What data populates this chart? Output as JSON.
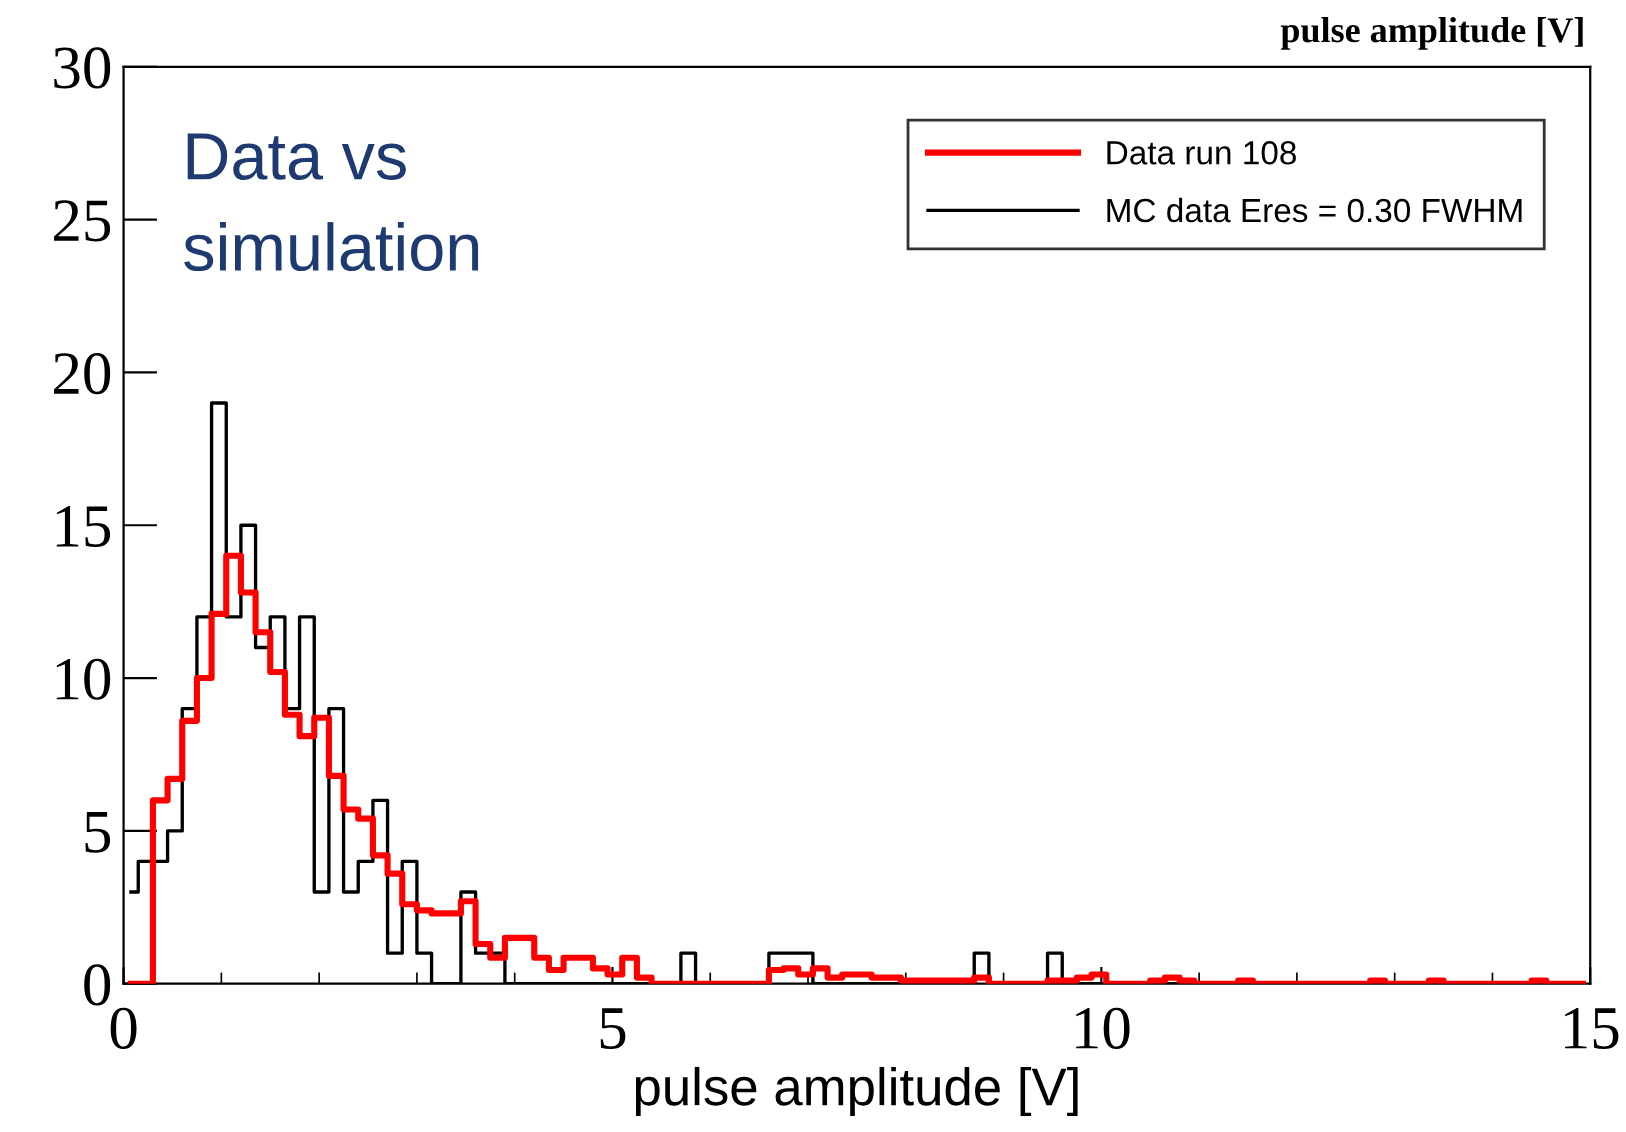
{
  "chart_data": {
    "type": "step",
    "title": "pulse amplitude [V]",
    "xlabel": "pulse amplitude [V]",
    "annotations": [
      "Data vs\nsimulation"
    ],
    "x": [
      0.075,
      0.225,
      0.375,
      0.525,
      0.675,
      0.825,
      0.975,
      1.125,
      1.275,
      1.425,
      1.575,
      1.725,
      1.875,
      2.025,
      2.175,
      2.325,
      2.475,
      2.625,
      2.775,
      2.925,
      3.075,
      3.225,
      3.375,
      3.525,
      3.675,
      3.825,
      3.975,
      4.125,
      4.275,
      4.425,
      4.575,
      4.725,
      4.875,
      5.025,
      5.175,
      5.325,
      5.475,
      5.625,
      5.775,
      5.925,
      6.075,
      6.225,
      6.375,
      6.525,
      6.675,
      6.825,
      6.975,
      7.125,
      7.275,
      7.425,
      7.575,
      7.725,
      7.875,
      8.025,
      8.175,
      8.325,
      8.475,
      8.625,
      8.775,
      8.925,
      9.075,
      9.225,
      9.375,
      9.525,
      9.675,
      9.825,
      9.975,
      10.125,
      10.275,
      10.425,
      10.575,
      10.725,
      10.875,
      11.025,
      11.175,
      11.325,
      11.475,
      11.625,
      11.775,
      11.925,
      12.075,
      12.225,
      12.375,
      12.525,
      12.675,
      12.825,
      12.975,
      13.125,
      13.275,
      13.425,
      13.575,
      13.725,
      13.875,
      14.025,
      14.175,
      14.325,
      14.475,
      14.625,
      14.775,
      14.925
    ],
    "series": [
      {
        "name": "Data run 108",
        "color": "#ff0000",
        "values": [
          0,
          0,
          6.0,
          6.7,
          8.6,
          10.0,
          12.1,
          14.0,
          12.8,
          11.5,
          10.2,
          8.8,
          8.1,
          8.7,
          6.8,
          5.7,
          5.4,
          4.2,
          3.6,
          2.6,
          2.4,
          2.3,
          2.3,
          2.7,
          1.3,
          0.85,
          1.5,
          1.5,
          0.85,
          0.45,
          0.85,
          0.85,
          0.5,
          0.3,
          0.85,
          0.2,
          0,
          0,
          0,
          0,
          0,
          0,
          0,
          0,
          0.45,
          0.5,
          0.3,
          0.5,
          0.2,
          0.3,
          0.3,
          0.2,
          0.2,
          0.1,
          0.1,
          0.1,
          0.1,
          0.1,
          0.2,
          0,
          0,
          0,
          0,
          0.1,
          0.1,
          0.2,
          0.3,
          0,
          0,
          0,
          0.1,
          0.2,
          0.1,
          0,
          0,
          0,
          0.1,
          0,
          0,
          0,
          0,
          0,
          0,
          0,
          0,
          0.1,
          0,
          0,
          0,
          0.1,
          0,
          0,
          0,
          0,
          0,
          0,
          0.1,
          0,
          0,
          0
        ]
      },
      {
        "name": "MC data Eres = 0.30 FWHM",
        "color": "#000000",
        "values": [
          3,
          4,
          4,
          5,
          9,
          12,
          19,
          12,
          15,
          11,
          12,
          9,
          12,
          3,
          9,
          3,
          4,
          6,
          1,
          4,
          1,
          0,
          0,
          3,
          1,
          1,
          0,
          0,
          0,
          0,
          0,
          0,
          0,
          0,
          0,
          0,
          0,
          0,
          1,
          0,
          0,
          0,
          0,
          0,
          1,
          1,
          1,
          0,
          0,
          0,
          0,
          0,
          0,
          0,
          0,
          0,
          0,
          0,
          1,
          0,
          0,
          0,
          0,
          1,
          0,
          0,
          0,
          0,
          0,
          0,
          0,
          0,
          0,
          0,
          0,
          0,
          0,
          0,
          0,
          0,
          0,
          0,
          0,
          0,
          0,
          0,
          0,
          0,
          0,
          0,
          0,
          0,
          0,
          0,
          0,
          0,
          0,
          0,
          0,
          0
        ]
      }
    ],
    "xlim": [
      0,
      15
    ],
    "xticks": [
      0,
      5,
      10,
      15
    ],
    "ylim": [
      0,
      30
    ],
    "yticks": [
      0,
      5,
      10,
      15,
      20,
      25,
      30
    ],
    "grid": false,
    "legend": "top right"
  }
}
